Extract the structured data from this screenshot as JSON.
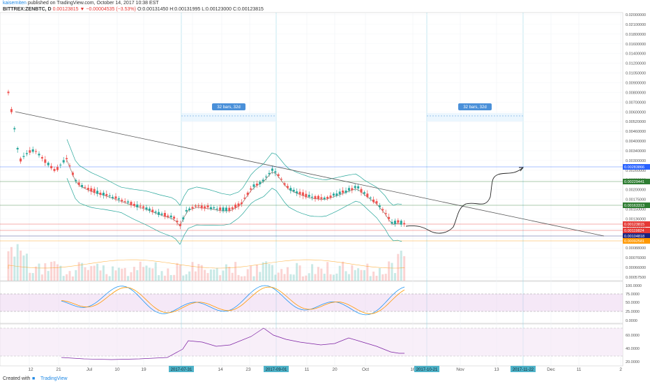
{
  "header": {
    "author": "kaiserniten",
    "published": "published on TradingView.com, October 14, 2017 10:38 EST",
    "symbol": "BITTREX:ZENBTC, D",
    "last": "0.00123815",
    "change": "▼ −0.00004535 (−3.53%)",
    "ohlc": "O:0.00131450 H:0.00131995 L:0.00123000 C:0.00123815"
  },
  "footer": {
    "created_with": "Created with",
    "brand": "TradingView"
  },
  "measures": [
    "32 bars, 32d",
    "32 bars, 32d"
  ],
  "chart_data": {
    "type": "candlestick",
    "price_axis_labels": [
      "0.02000000",
      "0.02100000",
      "0.01800000",
      "0.01600000",
      "0.01400000",
      "0.01200000",
      "0.01050000",
      "0.00900000",
      "0.00800000",
      "0.00700000",
      "0.00600000",
      "0.00520000",
      "0.00460000",
      "0.00400000",
      "0.00340000",
      "0.00300000",
      "0.00260000",
      "0.00230000",
      "0.00200000",
      "0.00175000",
      "0.00150000",
      "0.00136000",
      "0.00120000",
      "0.00104000",
      "0.00088000",
      "0.00076000",
      "0.00066000",
      "0.00057500"
    ],
    "price_badges": [
      {
        "value": "0.00283866",
        "color": "#2962ff"
      },
      {
        "value": "0.00229441",
        "color": "#2e7d32"
      },
      {
        "value": "0.00163313",
        "color": "#2e7d32"
      },
      {
        "value": "0.00123815",
        "color": "#e53935"
      },
      {
        "value": "0.00119824",
        "color": "#e53935"
      },
      {
        "value": "0.00104818",
        "color": "#1a237e"
      },
      {
        "value": "0.00092581",
        "color": "#ff9800"
      }
    ],
    "stoch_axis_labels": [
      "100.0000",
      "75.0000",
      "50.0000",
      "25.0000",
      "0.0000"
    ],
    "rsi_axis_labels": [
      "60.0000",
      "40.0000",
      "20.0000"
    ],
    "time_axis_labels": [
      "12",
      "21",
      "Jul",
      "10",
      "19",
      "14",
      "23",
      "11",
      "20",
      "Oct",
      "16",
      "Nov",
      "13",
      "Dec",
      "11",
      "2"
    ],
    "time_badges": [
      "2017-07-31",
      "2017-09-01",
      "2017-10-21",
      "2017-11-22"
    ]
  }
}
